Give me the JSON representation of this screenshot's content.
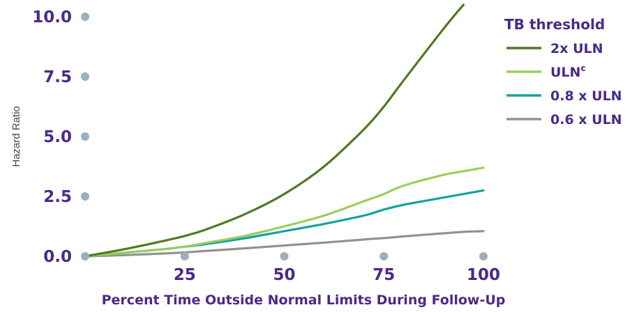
{
  "chart_data": {
    "type": "line",
    "title": "",
    "xlabel": "Percent Time Outside Normal Limits During Follow-Up",
    "ylabel": "Hazard Ratio",
    "xlim": [
      0,
      100
    ],
    "ylim": [
      0,
      10
    ],
    "x_ticks": [
      "25",
      "50",
      "75",
      "100"
    ],
    "x_tick_values": [
      25,
      50,
      75,
      100
    ],
    "y_ticks": [
      "0.0",
      "2.5",
      "5.0",
      "7.5",
      "10.0"
    ],
    "y_tick_values": [
      0,
      2.5,
      5,
      7.5,
      10
    ],
    "grid": false,
    "legend": {
      "title": "TB threshold",
      "placement": "right"
    },
    "x": [
      0,
      10,
      20,
      25,
      30,
      40,
      50,
      60,
      70,
      75,
      80,
      90,
      95,
      100
    ],
    "series": [
      {
        "name": "2x ULN",
        "label": "2x ULN",
        "color": "#4e7a21",
        "values": [
          0.0,
          0.3,
          0.65,
          0.85,
          1.1,
          1.75,
          2.6,
          3.75,
          5.3,
          6.25,
          7.35,
          9.5,
          10.5,
          null
        ]
      },
      {
        "name": "ULNᶜ",
        "label": "ULN",
        "label_sup": "c",
        "color": "#9ccd5c",
        "values": [
          0.0,
          0.15,
          0.3,
          0.4,
          0.55,
          0.85,
          1.25,
          1.7,
          2.3,
          2.6,
          2.95,
          3.4,
          3.55,
          3.7
        ]
      },
      {
        "name": "0.8 x ULN",
        "label": "0.8 x ULN",
        "color": "#11a3a0",
        "values": [
          0.0,
          0.15,
          0.3,
          0.4,
          0.5,
          0.75,
          1.05,
          1.35,
          1.7,
          1.95,
          2.15,
          2.45,
          2.6,
          2.75
        ]
      },
      {
        "name": "0.6 x ULN",
        "label": "0.6 x ULN",
        "color": "#929292",
        "values": [
          0.0,
          0.05,
          0.12,
          0.16,
          0.22,
          0.33,
          0.45,
          0.57,
          0.7,
          0.76,
          0.83,
          0.96,
          1.02,
          1.05
        ]
      }
    ]
  },
  "colors": {
    "text": "#4b2a86",
    "axis_marker": "#9ab0bd",
    "ylabel_text": "#444444"
  }
}
